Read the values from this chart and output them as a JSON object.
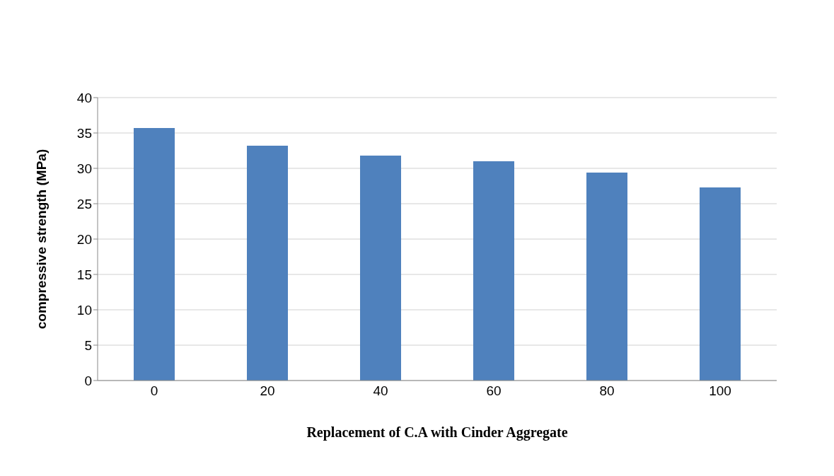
{
  "chart_data": {
    "type": "bar",
    "xlabel": "Replacement of C.A with Cinder Aggregate",
    "ylabel": "compressive strength  (MPa)",
    "categories": [
      "0",
      "20",
      "40",
      "60",
      "80",
      "100"
    ],
    "values": [
      35.7,
      33.2,
      31.8,
      31.0,
      29.4,
      27.3
    ],
    "color": "#4f81bd",
    "ylim": [
      0,
      40
    ],
    "yticks": [
      0,
      5,
      10,
      15,
      20,
      25,
      30,
      35,
      40
    ],
    "grid": "y",
    "legend": false
  }
}
